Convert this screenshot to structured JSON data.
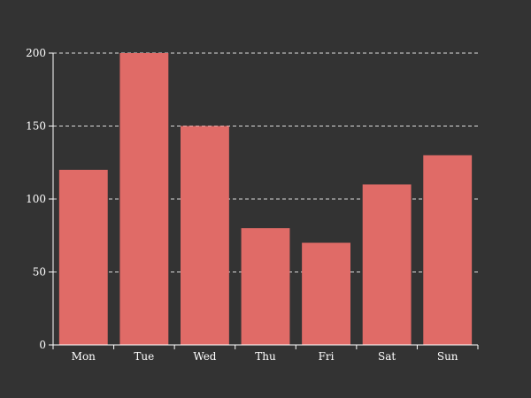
{
  "chart_data": {
    "type": "bar",
    "categories": [
      "Mon",
      "Tue",
      "Wed",
      "Thu",
      "Fri",
      "Sat",
      "Sun"
    ],
    "values": [
      120,
      200,
      150,
      80,
      70,
      110,
      130
    ],
    "ylim": [
      0,
      200
    ],
    "yticks": [
      0,
      50,
      100,
      150,
      200
    ],
    "grid": true,
    "bar_color": "#e06b67",
    "axis_color": "#ffffff",
    "grid_color": "#dddddd",
    "background_color": "#333333"
  }
}
